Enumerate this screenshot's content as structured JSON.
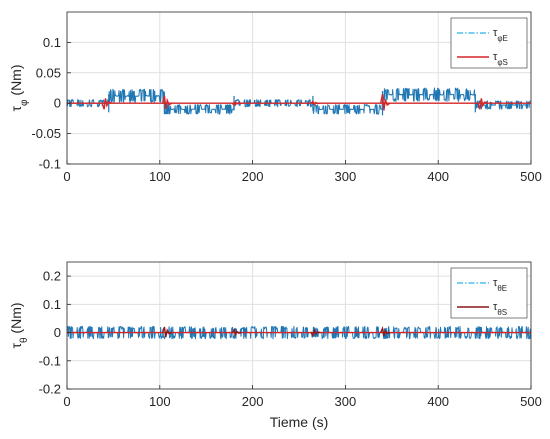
{
  "colors": {
    "estimated": "#1f77b4",
    "estimated_dash": "#4dbeee",
    "simulated": "#d62728",
    "simulated_dark": "#8b1a1a",
    "grid": "#e0e0e0",
    "axis": "#262626"
  },
  "chart_data": [
    {
      "type": "line",
      "ylabel": "τ_φ (Nm)",
      "xlabel": "",
      "xlim": [
        0,
        500
      ],
      "ylim": [
        -0.1,
        0.15
      ],
      "xticks": [
        0,
        100,
        200,
        300,
        400,
        500
      ],
      "yticks": [
        -0.1,
        -0.05,
        0,
        0.05,
        0.1
      ],
      "x_tick_labels": [
        "0",
        "100",
        "200",
        "300",
        "400",
        "500"
      ],
      "y_tick_labels": [
        "-0.1",
        "-0.05",
        "0",
        "0.05",
        "0.1"
      ],
      "grid": true,
      "legend_position": "top-right",
      "legend": [
        "τ_φE",
        "τ_φS"
      ],
      "series": [
        {
          "name": "τ_φE",
          "style": "dash-dot",
          "segments": [
            {
              "x": [
                0,
                45
              ],
              "level": 0.0,
              "amp": 0.006
            },
            {
              "x": [
                45,
                105
              ],
              "level": 0.012,
              "amp": 0.011
            },
            {
              "x": [
                105,
                180
              ],
              "level": -0.01,
              "amp": 0.008
            },
            {
              "x": [
                180,
                265
              ],
              "level": 0.0,
              "amp": 0.006
            },
            {
              "x": [
                265,
                340
              ],
              "level": -0.01,
              "amp": 0.008
            },
            {
              "x": [
                340,
                440
              ],
              "level": 0.014,
              "amp": 0.011
            },
            {
              "x": [
                440,
                500
              ],
              "level": -0.003,
              "amp": 0.007
            }
          ],
          "spikes": [
            {
              "x": 45,
              "y": 0.015
            },
            {
              "x": 105,
              "y": 0.018
            },
            {
              "x": 180,
              "y": -0.012
            },
            {
              "x": 265,
              "y": -0.012
            },
            {
              "x": 340,
              "y": -0.02
            },
            {
              "x": 440,
              "y": 0.015
            }
          ]
        },
        {
          "name": "τ_φS",
          "style": "solid",
          "level": 0,
          "transients": [
            {
              "x": 40,
              "y": -0.01
            },
            {
              "x": 105,
              "y": 0.012
            },
            {
              "x": 180,
              "y": -0.003
            },
            {
              "x": 265,
              "y": 0.003
            },
            {
              "x": 340,
              "y": 0.015
            },
            {
              "x": 445,
              "y": -0.01
            }
          ]
        }
      ]
    },
    {
      "type": "line",
      "ylabel": "τ_θ (Nm)",
      "xlabel": "Tieme (s)",
      "xlim": [
        0,
        500
      ],
      "ylim": [
        -0.2,
        0.25
      ],
      "xticks": [
        0,
        100,
        200,
        300,
        400,
        500
      ],
      "yticks": [
        -0.2,
        -0.1,
        0,
        0.1,
        0.2
      ],
      "x_tick_labels": [
        "0",
        "100",
        "200",
        "300",
        "400",
        "500"
      ],
      "y_tick_labels": [
        "-0.2",
        "-0.1",
        "0",
        "0.1",
        "0.2"
      ],
      "grid": true,
      "legend_position": "top-right",
      "legend": [
        "τ_θE",
        "τ_θS"
      ],
      "series": [
        {
          "name": "τ_θE",
          "style": "dash-dot",
          "level": 0.0,
          "amp": 0.022,
          "burst_period": 11
        },
        {
          "name": "τ_θS",
          "style": "solid",
          "level": 0,
          "transients": [
            {
              "x": 105,
              "y": 0.02
            },
            {
              "x": 180,
              "y": 0.01
            },
            {
              "x": 265,
              "y": -0.01
            },
            {
              "x": 340,
              "y": 0.015
            }
          ]
        }
      ]
    }
  ]
}
